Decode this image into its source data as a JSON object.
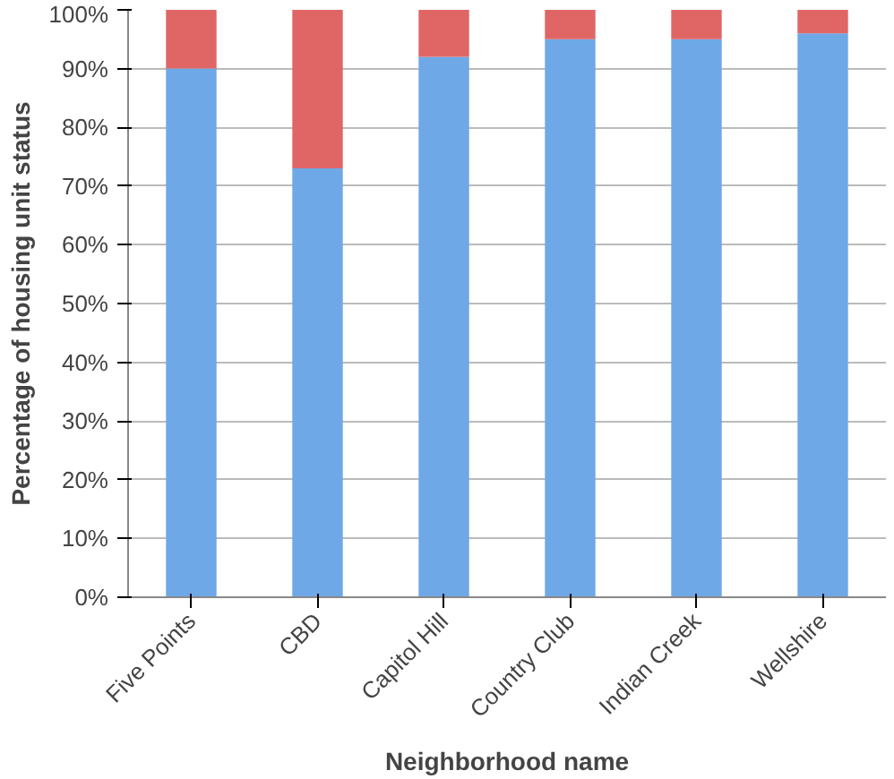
{
  "chart_data": {
    "type": "bar",
    "stacked": true,
    "xlabel": "Neighborhood name",
    "ylabel": "Percentage of housing unit status",
    "categories": [
      "Five Points",
      "CBD",
      "Capitol Hill",
      "Country Club",
      "Indian Creek",
      "Wellshire"
    ],
    "series": [
      {
        "color": "#6fa8e6",
        "values": [
          90,
          73,
          92,
          95,
          95,
          96
        ]
      },
      {
        "color": "#e06666",
        "values": [
          10,
          27,
          8,
          5,
          5,
          4
        ]
      }
    ],
    "ylim": [
      0,
      100
    ],
    "yticks": [
      {
        "value": 0,
        "label": "0%"
      },
      {
        "value": 10,
        "label": "10%"
      },
      {
        "value": 20,
        "label": "20%"
      },
      {
        "value": 30,
        "label": "30%"
      },
      {
        "value": 40,
        "label": "40%"
      },
      {
        "value": 50,
        "label": "50%"
      },
      {
        "value": 60,
        "label": "60%"
      },
      {
        "value": 70,
        "label": "70%"
      },
      {
        "value": 80,
        "label": "80%"
      },
      {
        "value": 90,
        "label": "90%"
      },
      {
        "value": 100,
        "label": "100%"
      }
    ],
    "grid": "y"
  }
}
